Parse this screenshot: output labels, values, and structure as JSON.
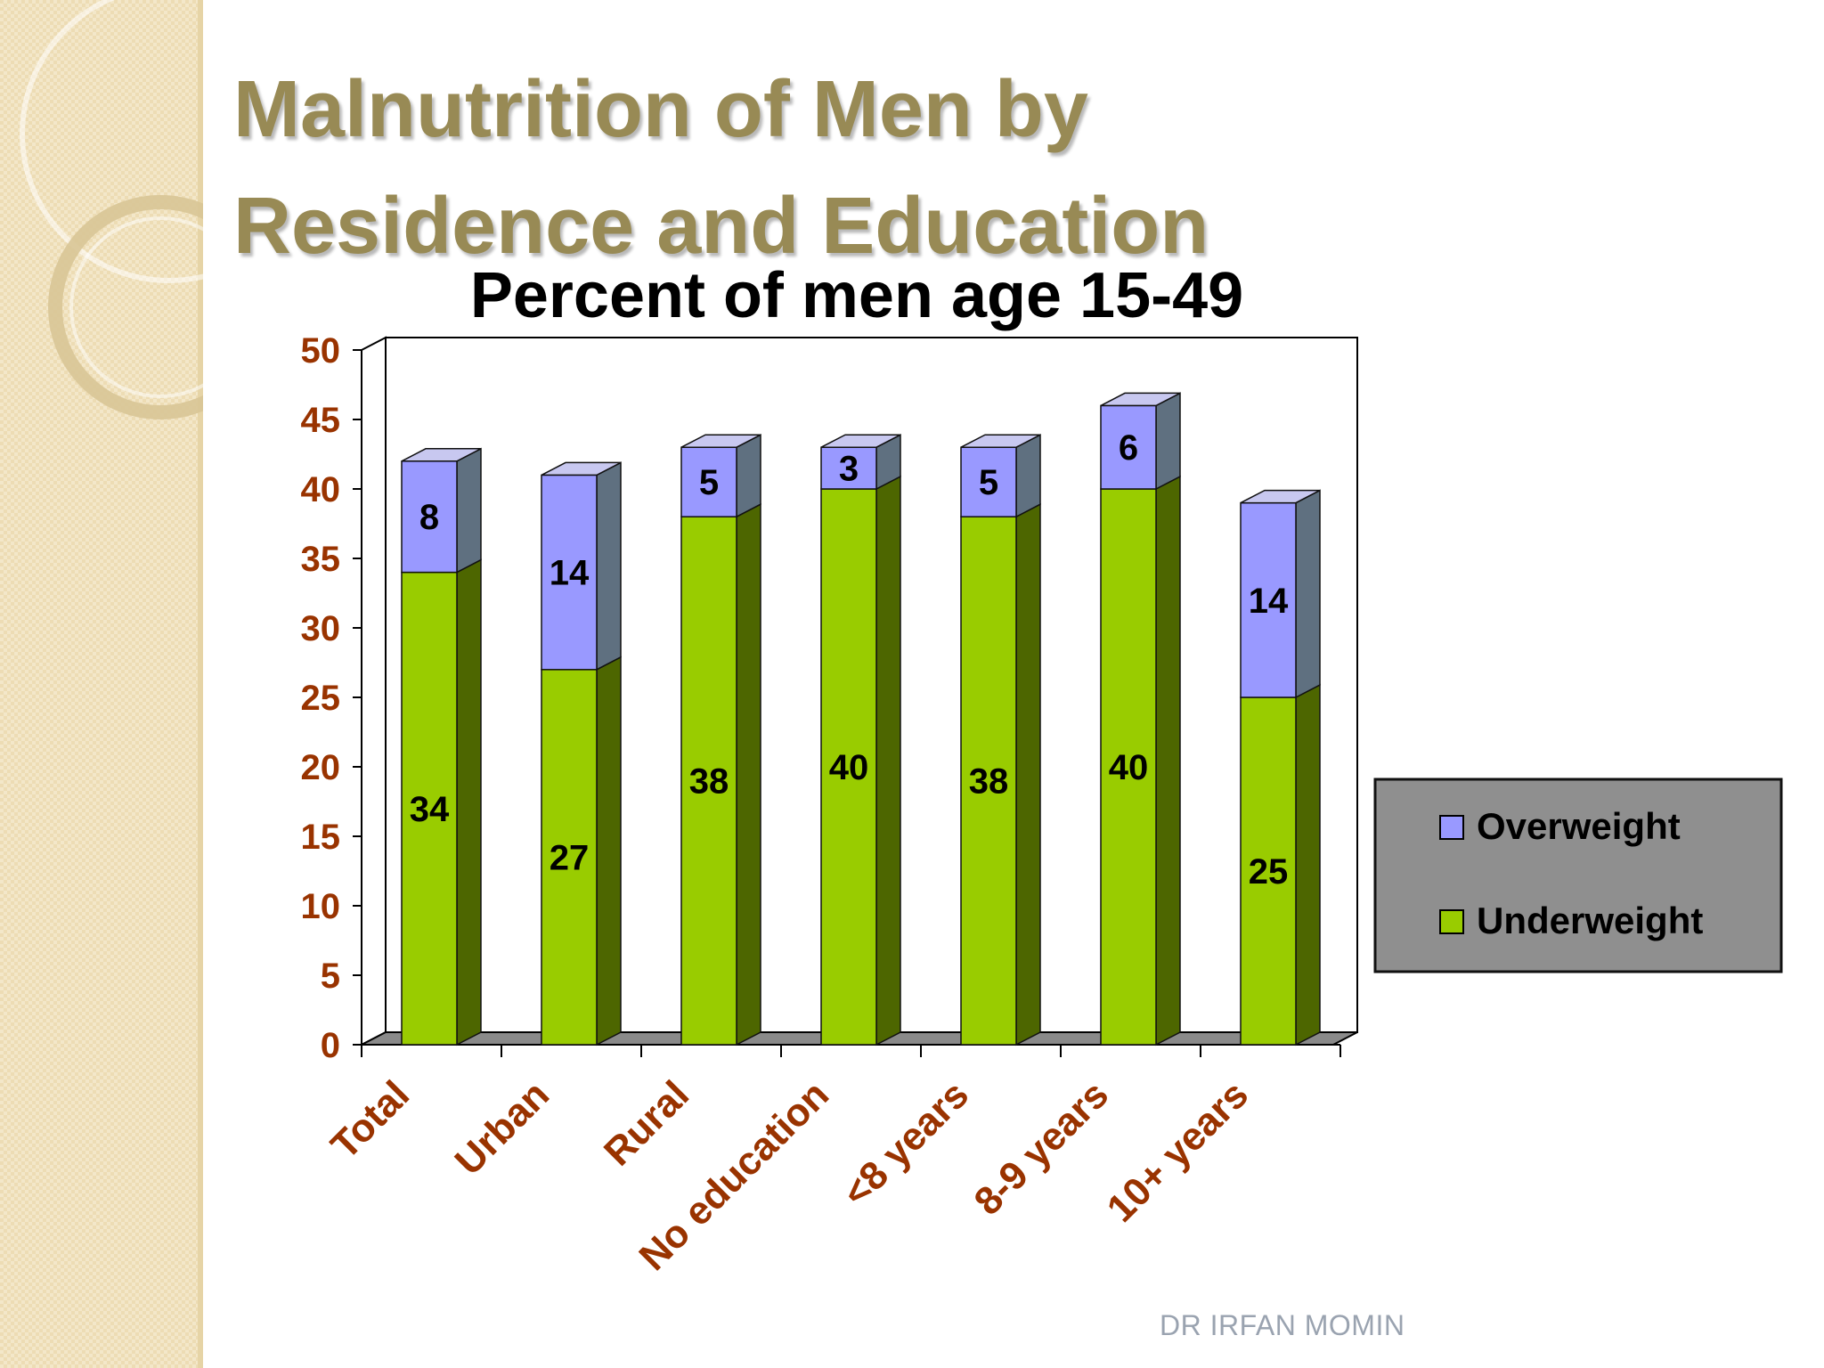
{
  "slide": {
    "title_line1": "Malnutrition of Men by",
    "title_line2": "Residence and Education",
    "footer": "DR IRFAN MOMIN"
  },
  "colors": {
    "title": "#988a55",
    "underweight": "#99cc00",
    "overweight": "#9999ff",
    "axis_labels": "#993300",
    "legend_bg": "#8f8f8f",
    "background_panel": "#f2e6c8"
  },
  "chart_data": {
    "type": "bar",
    "stacked": true,
    "three_d": true,
    "title": "Percent of men age 15-49",
    "categories": [
      "Total",
      "Urban",
      "Rural",
      "No education",
      "<8 years",
      "8-9 years",
      "10+ years"
    ],
    "series": [
      {
        "name": "Underweight",
        "values": [
          34,
          27,
          38,
          40,
          38,
          40,
          25
        ],
        "color": "#99cc00"
      },
      {
        "name": "Overweight",
        "values": [
          8,
          14,
          5,
          3,
          5,
          6,
          14
        ],
        "color": "#9999ff"
      }
    ],
    "ylim": [
      0,
      50
    ],
    "yticks": [
      0,
      5,
      10,
      15,
      20,
      25,
      30,
      35,
      40,
      45,
      50
    ],
    "legend_position": "right",
    "legend_order": [
      "Overweight",
      "Underweight"
    ],
    "grid": false
  }
}
